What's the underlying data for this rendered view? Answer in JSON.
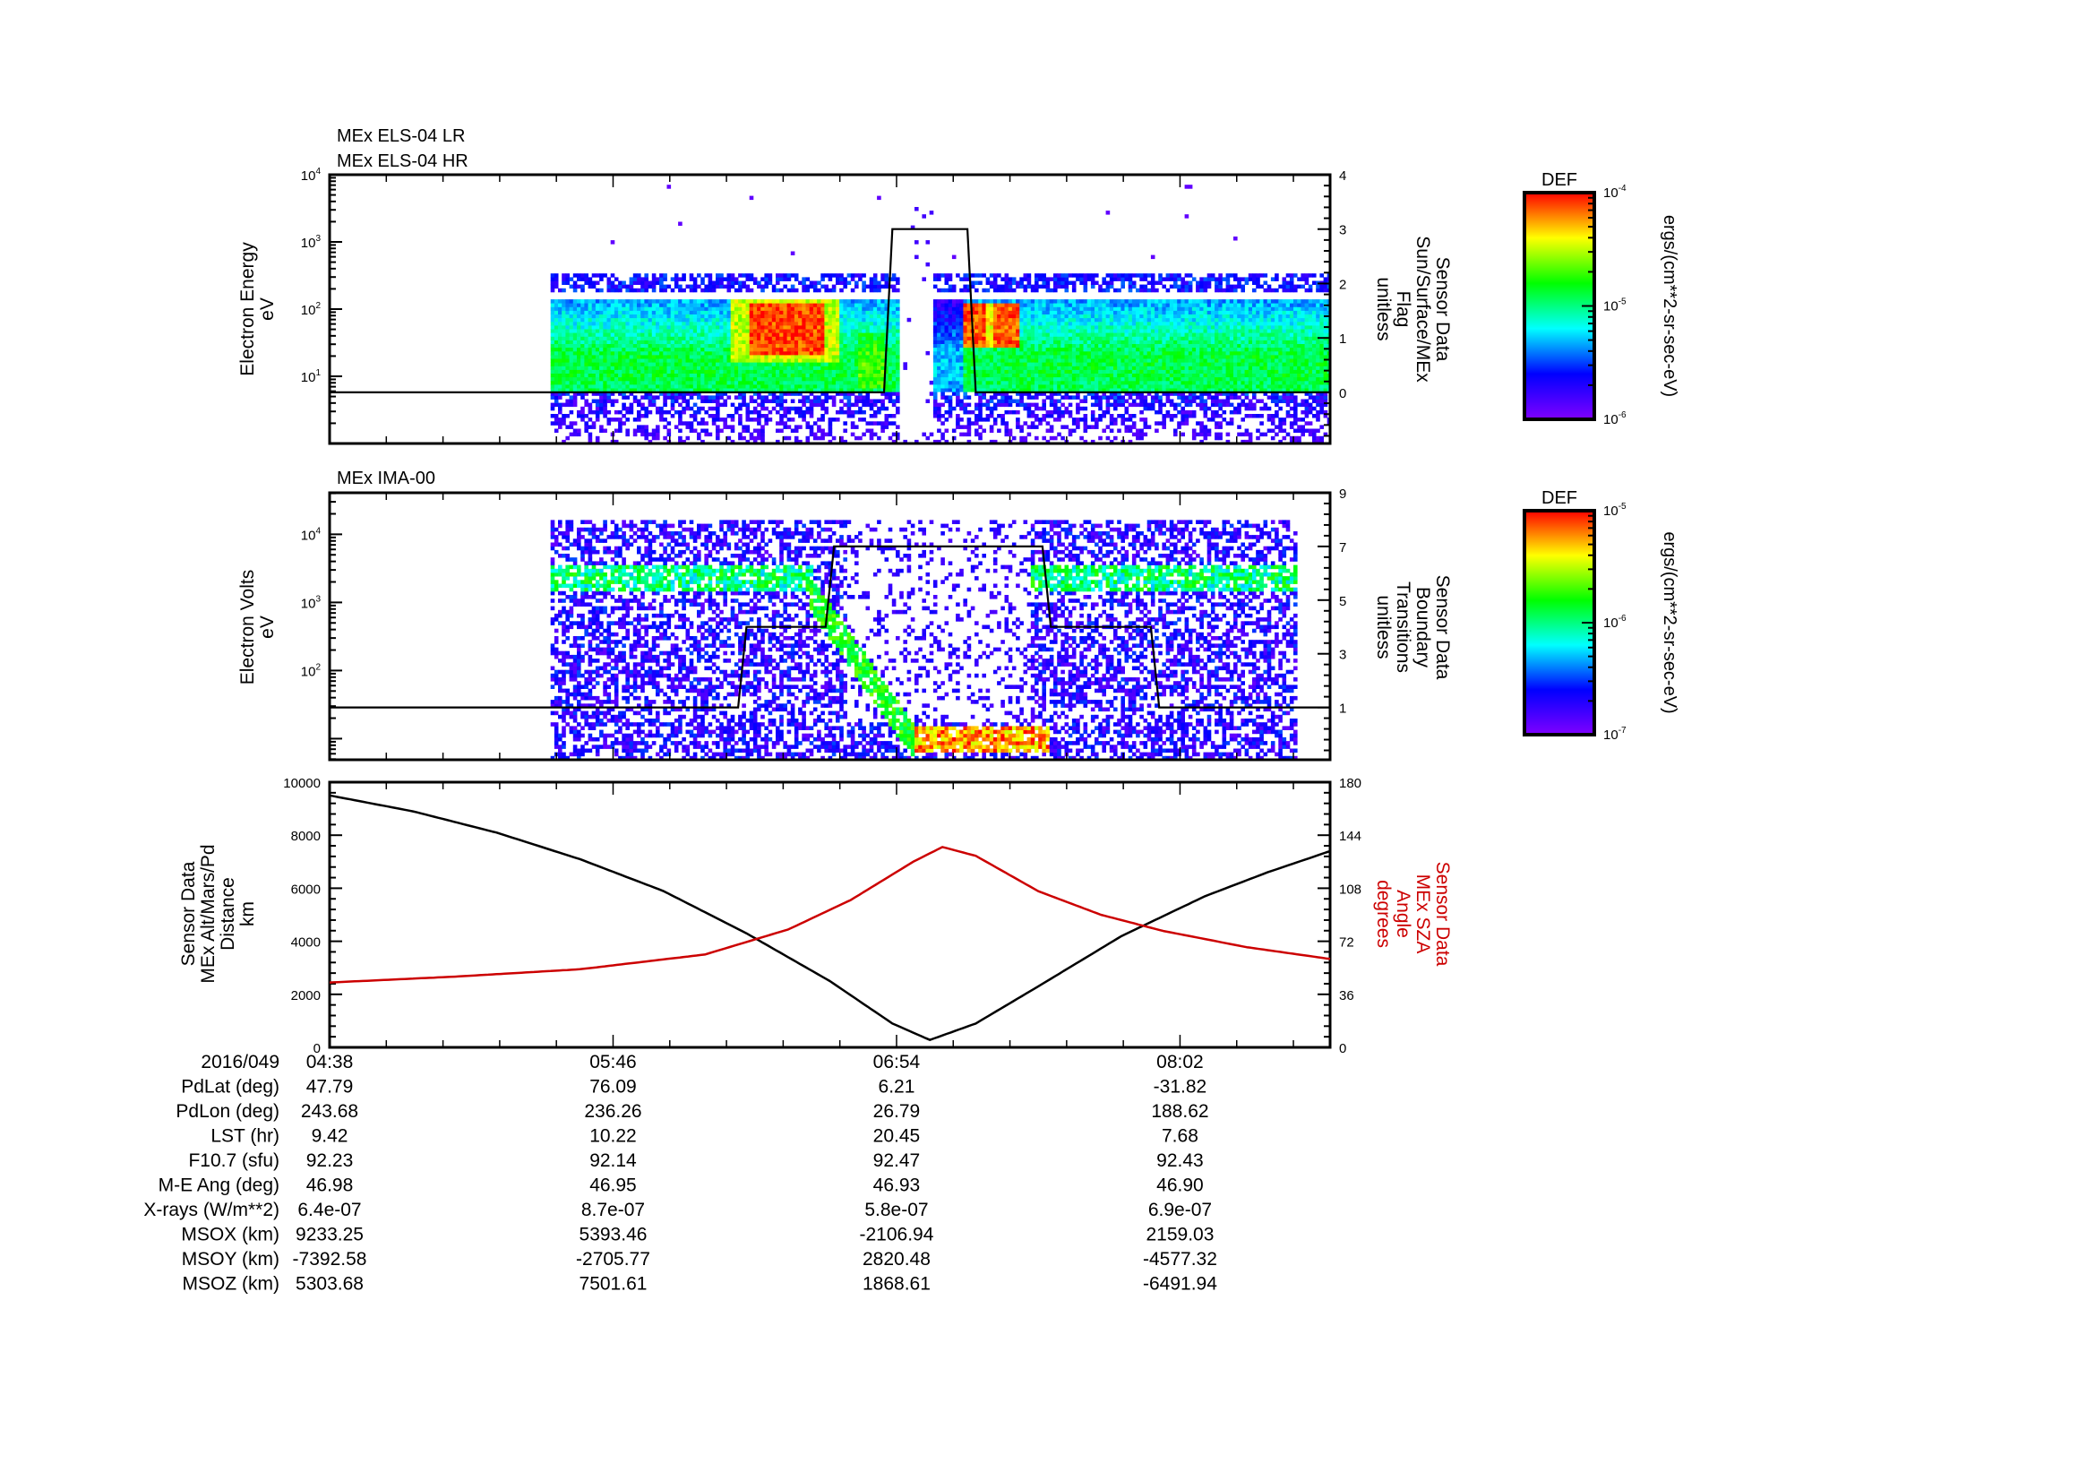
{
  "chart_data": [
    {
      "type": "heatmap",
      "panel": "els",
      "titles": [
        "MEx ELS-04 LR",
        "MEx ELS-04 HR"
      ],
      "ylabel": [
        "Electron Energy",
        "eV"
      ],
      "yscale": "log",
      "ylim_log10": [
        0,
        4
      ],
      "yticks": [
        {
          "base": "10",
          "exp": "1",
          "v": 1
        },
        {
          "base": "10",
          "exp": "2",
          "v": 2
        },
        {
          "base": "10",
          "exp": "3",
          "v": 3
        },
        {
          "base": "10",
          "exp": "4",
          "v": 4
        }
      ],
      "y2label": [
        "Sensor Data",
        "Sun/Surface/MEx",
        "Flag",
        "unitless"
      ],
      "y2lim": [
        -0.94,
        4
      ],
      "y2ticks": [
        "0",
        "1",
        "2",
        "3",
        "4"
      ],
      "colorbar": {
        "title": "DEF",
        "units": "ergs/(cm**2-sr-sec-eV)",
        "ticks": [
          {
            "base": "10",
            "exp": "-4"
          },
          {
            "base": "10",
            "exp": "-5"
          },
          {
            "base": "10",
            "exp": "-6"
          }
        ],
        "range_log10": [
          -6,
          -4
        ]
      },
      "data_span_min": [
        53,
        240
      ],
      "gap_min": [
        137,
        144
      ],
      "line_series": {
        "name": "Sun/Surface/MEx Flag",
        "t_min": [
          0,
          133,
          135,
          153,
          155,
          240
        ],
        "values": [
          0,
          0,
          3,
          3,
          0,
          0
        ]
      }
    },
    {
      "type": "heatmap",
      "panel": "ima",
      "titles": [
        "MEx IMA-00"
      ],
      "ylabel": [
        "Electron Volts",
        "eV"
      ],
      "yscale": "log",
      "ylim_log10": [
        0.69,
        4.61
      ],
      "yticks": [
        {
          "base": "10",
          "exp": "2",
          "v": 2
        },
        {
          "base": "10",
          "exp": "3",
          "v": 3
        },
        {
          "base": "10",
          "exp": "4",
          "v": 4
        }
      ],
      "y2label": [
        "Sensor Data",
        "Boundary",
        "Transitions",
        "unitless"
      ],
      "y2lim": [
        -0.95,
        9
      ],
      "y2ticks": [
        "1",
        "3",
        "5",
        "7",
        "9"
      ],
      "colorbar": {
        "title": "DEF",
        "units": "ergs/(cm**2-sr-sec-eV)",
        "ticks": [
          {
            "base": "10",
            "exp": "-5"
          },
          {
            "base": "10",
            "exp": "-6"
          },
          {
            "base": "10",
            "exp": "-7"
          }
        ],
        "range_log10": [
          -7,
          -5
        ]
      },
      "data_span_min": [
        53,
        232
      ],
      "line_series": {
        "name": "Boundary Transitions",
        "t_min": [
          0,
          98,
          100,
          119,
          121,
          171,
          173,
          197,
          199,
          240
        ],
        "values": [
          1,
          1,
          4,
          4,
          7,
          7,
          4,
          4,
          1,
          1
        ]
      }
    },
    {
      "type": "line",
      "panel": "orbit",
      "ylabel": [
        "Sensor Data",
        "MEx Alt/Mars/Pd",
        "Distance",
        "km"
      ],
      "ylim": [
        0,
        10000
      ],
      "yticks": [
        "0",
        "2000",
        "4000",
        "6000",
        "8000",
        "10000"
      ],
      "y2label": [
        "Sensor Data",
        "MEx SZA",
        "Angle",
        "degrees"
      ],
      "y2lim": [
        0,
        180
      ],
      "y2ticks": [
        "0",
        "36",
        "72",
        "108",
        "144",
        "180"
      ],
      "series": [
        {
          "name": "MEx Alt/Mars/Pd Distance (km)",
          "color": "#000000",
          "t_min": [
            0,
            20,
            40,
            60,
            80,
            100,
            120,
            135,
            144,
            155,
            170,
            190,
            210,
            225,
            240
          ],
          "values": [
            9500,
            8900,
            8100,
            7100,
            5900,
            4300,
            2500,
            900,
            280,
            900,
            2300,
            4200,
            5700,
            6600,
            7400
          ]
        },
        {
          "name": "MEx SZA Angle (degrees)",
          "color": "#cc0000",
          "t_min": [
            0,
            30,
            60,
            90,
            110,
            125,
            140,
            147,
            155,
            170,
            185,
            200,
            220,
            240
          ],
          "values": [
            44,
            48,
            53,
            63,
            80,
            100,
            126,
            136,
            130,
            106,
            90,
            79,
            68,
            60
          ]
        }
      ]
    }
  ],
  "time_axis": {
    "start": "04:38",
    "span_min": 240,
    "major_step_min": 68
  },
  "ephemeris": {
    "date": "2016/049",
    "times": [
      "04:38",
      "05:46",
      "06:54",
      "08:02"
    ],
    "rows": [
      {
        "label": "PdLat (deg)",
        "values": [
          "47.79",
          "76.09",
          "6.21",
          "-31.82"
        ]
      },
      {
        "label": "PdLon (deg)",
        "values": [
          "243.68",
          "236.26",
          "26.79",
          "188.62"
        ]
      },
      {
        "label": "LST (hr)",
        "values": [
          "9.42",
          "10.22",
          "20.45",
          "7.68"
        ]
      },
      {
        "label": "F10.7 (sfu)",
        "values": [
          "92.23",
          "92.14",
          "92.47",
          "92.43"
        ]
      },
      {
        "label": "M-E Ang (deg)",
        "values": [
          "46.98",
          "46.95",
          "46.93",
          "46.90"
        ]
      },
      {
        "label": "X-rays (W/m**2)",
        "values": [
          "6.4e-07",
          "8.7e-07",
          "5.8e-07",
          "6.9e-07"
        ]
      },
      {
        "label": "MSOX (km)",
        "values": [
          "9233.25",
          "5393.46",
          "-2106.94",
          "2159.03"
        ]
      },
      {
        "label": "MSOY (km)",
        "values": [
          "-7392.58",
          "-2705.77",
          "2820.48",
          "-4577.32"
        ]
      },
      {
        "label": "MSOZ (km)",
        "values": [
          "5303.68",
          "7501.61",
          "1868.61",
          "-6491.94"
        ]
      }
    ]
  }
}
